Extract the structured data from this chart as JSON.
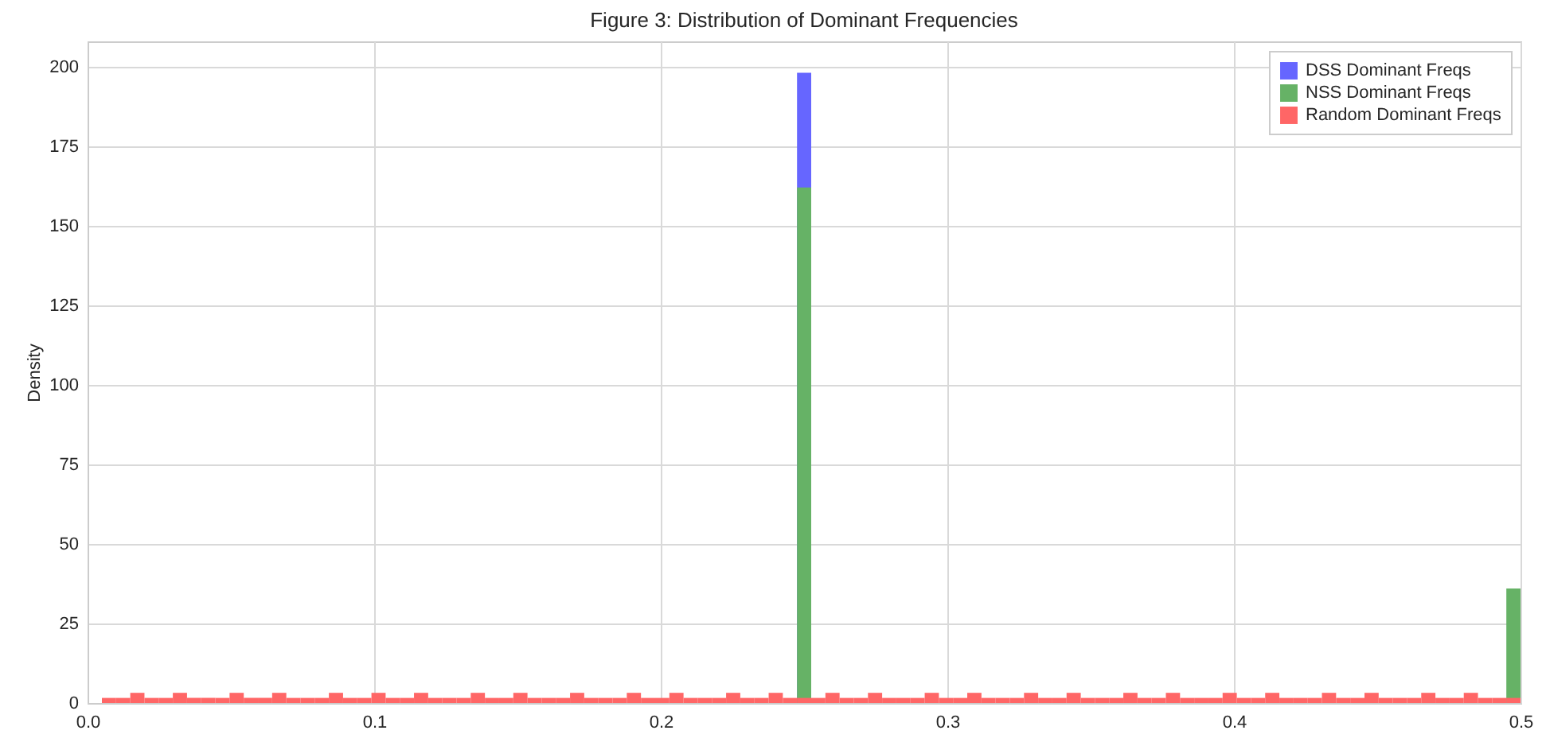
{
  "chart_data": {
    "type": "histogram",
    "title": "Figure 3: Distribution of Dominant Frequencies",
    "ylabel": "Density",
    "xlim": [
      0,
      0.5
    ],
    "xticks": [
      {
        "value": 0,
        "label": "0.0"
      },
      0.1,
      0.2,
      0.3,
      0.4,
      {
        "value": 0.5,
        "label": "0.5"
      }
    ],
    "ylim": [
      0,
      207.9
    ],
    "yticks": [
      0,
      25,
      50,
      75,
      100,
      125,
      150,
      175,
      200
    ],
    "grid": true,
    "legend": "top right",
    "bins": [
      0.005,
      0.00995,
      0.0149,
      0.01985,
      0.0248,
      0.02975,
      0.0347,
      0.03965,
      0.0446,
      0.04955,
      0.0545,
      0.05945,
      0.0644,
      0.06935,
      0.0743,
      0.07925,
      0.0842,
      0.08915,
      0.0941,
      0.09905,
      0.104,
      0.10895,
      0.1139,
      0.11885,
      0.1238,
      0.12875,
      0.1337,
      0.13865,
      0.1436,
      0.14855,
      0.1535,
      0.15845,
      0.1634,
      0.16835,
      0.1733,
      0.17825,
      0.1832,
      0.18815,
      0.1931,
      0.19805,
      0.203,
      0.20795,
      0.2129,
      0.21785,
      0.2228,
      0.22775,
      0.2327,
      0.23765,
      0.2426,
      0.24755,
      0.2525,
      0.25745,
      0.2624,
      0.26735,
      0.2723,
      0.27725,
      0.2822,
      0.28715,
      0.2921,
      0.29705,
      0.302,
      0.30695,
      0.3119,
      0.31685,
      0.3218,
      0.32675,
      0.3317,
      0.33665,
      0.3416,
      0.34655,
      0.3515,
      0.35645,
      0.3614,
      0.36635,
      0.3713,
      0.37625,
      0.3812,
      0.38615,
      0.3911,
      0.39605,
      0.401,
      0.40595,
      0.4109,
      0.41585,
      0.4208,
      0.42575,
      0.4307,
      0.43565,
      0.4406,
      0.44555,
      0.4505,
      0.45545,
      0.4604,
      0.46535,
      0.4703,
      0.47525,
      0.4802,
      0.48515,
      0.4901,
      0.49505,
      0.5
    ],
    "series": [
      {
        "name": "DSS Dominant Freqs",
        "color": "#6666ff",
        "values": [
          null,
          null,
          null,
          null,
          null,
          null,
          null,
          null,
          null,
          null,
          null,
          null,
          null,
          null,
          null,
          null,
          null,
          null,
          null,
          null,
          null,
          null,
          null,
          null,
          null,
          null,
          null,
          null,
          null,
          null,
          null,
          null,
          null,
          null,
          null,
          null,
          null,
          null,
          null,
          null,
          null,
          null,
          null,
          null,
          null,
          null,
          null,
          null,
          null,
          198,
          null,
          null,
          null,
          null,
          null,
          null,
          null,
          null,
          null,
          null,
          null,
          null,
          null,
          null,
          null,
          null,
          null,
          null,
          null,
          null,
          null,
          null,
          null,
          null,
          null,
          null,
          null,
          null,
          null,
          null,
          null,
          null,
          null,
          null,
          null,
          null,
          null,
          null,
          null,
          null,
          null,
          null,
          null,
          null,
          null,
          null,
          null,
          null,
          null,
          null
        ]
      },
      {
        "name": "NSS Dominant Freqs",
        "color": "#66b266",
        "values": [
          null,
          null,
          null,
          null,
          null,
          null,
          null,
          null,
          null,
          null,
          null,
          null,
          null,
          null,
          null,
          null,
          null,
          null,
          null,
          null,
          null,
          null,
          null,
          null,
          null,
          null,
          null,
          null,
          null,
          null,
          null,
          null,
          null,
          null,
          null,
          null,
          null,
          null,
          null,
          null,
          null,
          null,
          null,
          null,
          null,
          null,
          null,
          null,
          null,
          162,
          null,
          null,
          null,
          null,
          null,
          null,
          null,
          null,
          null,
          null,
          null,
          null,
          null,
          null,
          null,
          null,
          null,
          null,
          null,
          null,
          null,
          null,
          null,
          null,
          null,
          null,
          null,
          null,
          null,
          null,
          null,
          null,
          null,
          null,
          null,
          null,
          null,
          null,
          null,
          null,
          null,
          null,
          null,
          null,
          null,
          null,
          null,
          null,
          null,
          36
        ]
      },
      {
        "name": "Random Dominant Freqs",
        "color": "#ff6666",
        "values": [
          1.6,
          1.6,
          3.2,
          1.6,
          1.6,
          3.2,
          1.6,
          1.6,
          1.6,
          3.2,
          1.6,
          1.6,
          3.2,
          1.6,
          1.6,
          1.6,
          3.2,
          1.6,
          1.6,
          3.2,
          1.6,
          1.6,
          3.2,
          1.6,
          1.6,
          1.6,
          3.2,
          1.6,
          1.6,
          3.2,
          1.6,
          1.6,
          1.6,
          3.2,
          1.6,
          1.6,
          1.6,
          3.2,
          1.6,
          1.6,
          3.2,
          1.6,
          1.6,
          1.6,
          3.2,
          1.6,
          1.6,
          3.2,
          1.6,
          1.6,
          1.6,
          3.2,
          1.6,
          1.6,
          3.2,
          1.6,
          1.6,
          1.6,
          3.2,
          1.6,
          1.6,
          3.2,
          1.6,
          1.6,
          1.6,
          3.2,
          1.6,
          1.6,
          3.2,
          1.6,
          1.6,
          1.6,
          3.2,
          1.6,
          1.6,
          3.2,
          1.6,
          1.6,
          1.6,
          3.2,
          1.6,
          1.6,
          3.2,
          1.6,
          1.6,
          1.6,
          3.2,
          1.6,
          1.6,
          3.2,
          1.6,
          1.6,
          1.6,
          3.2,
          1.6,
          1.6,
          3.2,
          1.6,
          1.6,
          1.6
        ]
      }
    ]
  }
}
